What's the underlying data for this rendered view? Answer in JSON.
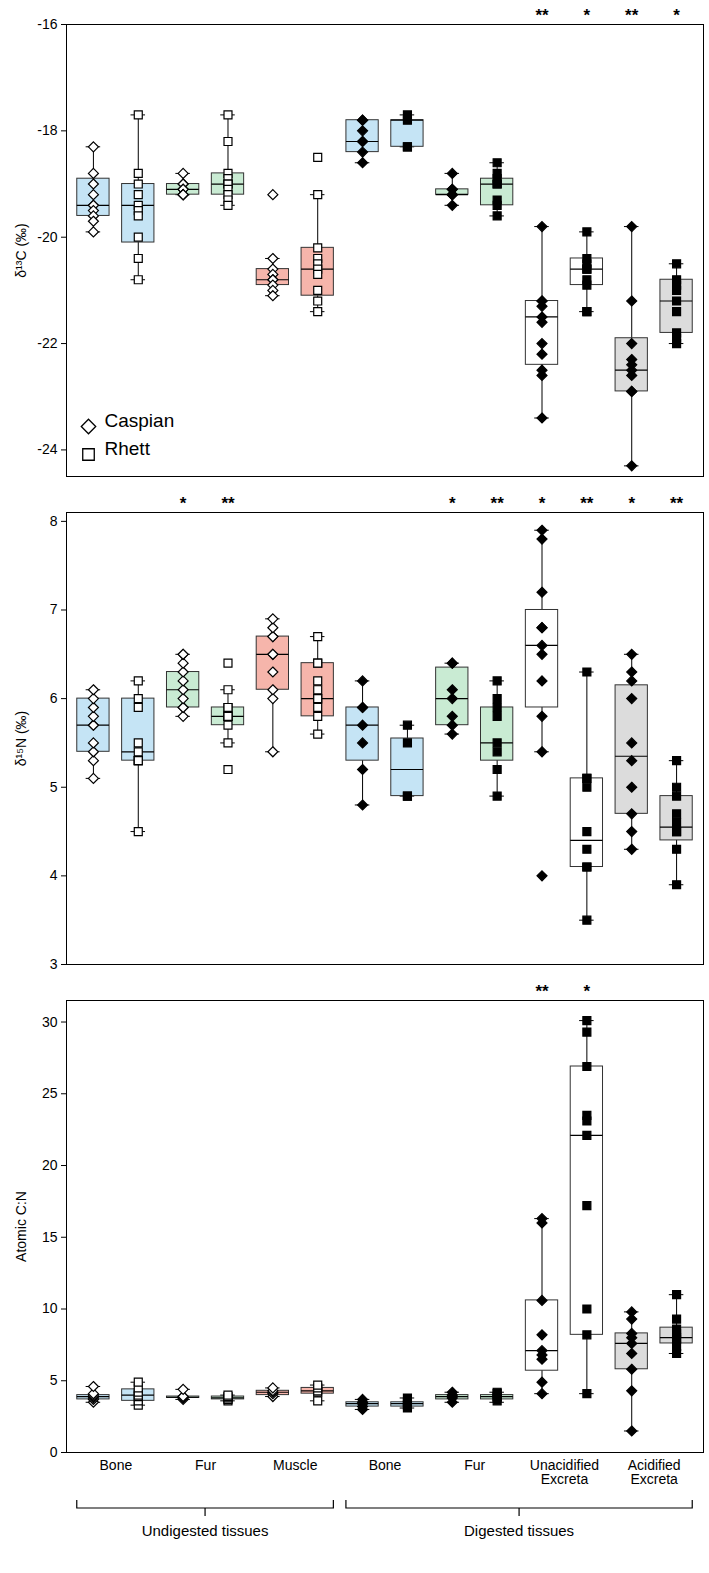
{
  "chart_data": [
    {
      "type": "box",
      "y_label": "δ¹³C (‰)",
      "tick_labels": "y",
      "legend": "bottom-left",
      "categories": [
        "Bone",
        "Fur",
        "Muscle",
        "Bone",
        "Fur",
        "Unacidified Excreta",
        "Acidified Excreta"
      ],
      "colors": [
        "#c5e4f5",
        "#c9ebd3",
        "#f6b5ab",
        "#c5e4f5",
        "#c9ebd3",
        "#ffffff",
        "#dcdcdc"
      ],
      "ylim": [
        -24.5,
        -16
      ],
      "yticks": [
        -24,
        -22,
        -20,
        -18,
        -16
      ],
      "series": [
        {
          "name": "Caspian",
          "marker": "diamond",
          "significance": [
            null,
            null,
            null,
            null,
            null,
            "**",
            "**"
          ],
          "boxes": [
            {
              "min": -19.9,
              "q1": -19.6,
              "median": -19.4,
              "q3": -18.9,
              "max": -18.3,
              "points": [
                -18.3,
                -18.8,
                -19.0,
                -19.2,
                -19.4,
                -19.4,
                -19.5,
                -19.6,
                -19.7,
                -19.9
              ]
            },
            {
              "min": -19.2,
              "q1": -19.2,
              "median": -19.1,
              "q3": -19.0,
              "max": -18.8,
              "points": [
                -18.8,
                -19.0,
                -19.0,
                -19.1,
                -19.1,
                -19.1,
                -19.2,
                -19.2,
                -19.2,
                -19.2
              ]
            },
            {
              "min": -21.1,
              "q1": -20.9,
              "median": -20.8,
              "q3": -20.6,
              "max": -20.4,
              "points": [
                -19.2,
                -20.4,
                -20.6,
                -20.7,
                -20.8,
                -20.8,
                -20.9,
                -21.0,
                -21.1
              ]
            },
            {
              "min": -18.6,
              "q1": -18.4,
              "median": -18.2,
              "q3": -17.8,
              "max": -17.8,
              "points": [
                -17.8,
                -17.8,
                -18.0,
                -18.2,
                -18.2,
                -18.4,
                -18.6
              ]
            },
            {
              "min": -19.4,
              "q1": -19.2,
              "median": -19.2,
              "q3": -19.1,
              "max": -18.8,
              "points": [
                -18.8,
                -19.1,
                -19.1,
                -19.2,
                -19.2,
                -19.2,
                -19.4
              ]
            },
            {
              "min": -23.4,
              "q1": -22.4,
              "median": -21.5,
              "q3": -21.2,
              "max": -19.8,
              "points": [
                -19.8,
                -21.2,
                -21.2,
                -21.3,
                -21.5,
                -21.6,
                -22.0,
                -22.2,
                -22.5,
                -22.6,
                -23.4
              ]
            },
            {
              "min": -24.3,
              "q1": -22.9,
              "median": -22.5,
              "q3": -21.9,
              "max": -19.8,
              "points": [
                -19.8,
                -21.2,
                -22.0,
                -22.3,
                -22.4,
                -22.5,
                -22.6,
                -22.9,
                -22.9,
                -24.3
              ]
            }
          ]
        },
        {
          "name": "Rhett",
          "marker": "square",
          "significance": [
            null,
            null,
            null,
            null,
            null,
            "*",
            "*"
          ],
          "boxes": [
            {
              "min": -20.8,
              "q1": -20.1,
              "median": -19.4,
              "q3": -19.0,
              "max": -17.7,
              "points": [
                -17.7,
                -18.8,
                -19.0,
                -19.2,
                -19.4,
                -19.5,
                -19.6,
                -20.0,
                -20.4,
                -20.8
              ]
            },
            {
              "min": -19.4,
              "q1": -19.2,
              "median": -19.0,
              "q3": -18.8,
              "max": -17.7,
              "points": [
                -17.7,
                -18.2,
                -18.8,
                -18.9,
                -19.0,
                -19.0,
                -19.1,
                -19.2,
                -19.3,
                -19.4
              ]
            },
            {
              "min": -21.4,
              "q1": -21.1,
              "median": -20.6,
              "q3": -20.2,
              "max": -19.2,
              "points": [
                -18.5,
                -19.2,
                -20.2,
                -20.4,
                -20.5,
                -20.6,
                -20.7,
                -21.0,
                -21.2,
                -21.4
              ]
            },
            {
              "min": -18.3,
              "q1": -18.3,
              "median": -17.8,
              "q3": -17.8,
              "max": -17.7,
              "points": [
                -17.7,
                -17.8,
                -18.3,
                -18.3
              ]
            },
            {
              "min": -19.6,
              "q1": -19.4,
              "median": -19.0,
              "q3": -18.9,
              "max": -18.6,
              "points": [
                -18.6,
                -18.8,
                -18.9,
                -19.0,
                -19.0,
                -19.3,
                -19.4,
                -19.6
              ]
            },
            {
              "min": -21.4,
              "q1": -20.9,
              "median": -20.6,
              "q3": -20.4,
              "max": -19.9,
              "points": [
                -19.9,
                -20.4,
                -20.5,
                -20.6,
                -20.6,
                -20.8,
                -20.9,
                -21.4,
                -21.4
              ]
            },
            {
              "min": -22.0,
              "q1": -21.8,
              "median": -21.2,
              "q3": -20.8,
              "max": -20.5,
              "points": [
                -20.5,
                -20.8,
                -20.9,
                -21.0,
                -21.2,
                -21.4,
                -21.8,
                -21.9,
                -22.0
              ]
            }
          ]
        }
      ]
    },
    {
      "type": "box",
      "y_label": "δ¹⁵N (‰)",
      "tick_labels": "y",
      "categories": [
        "Bone",
        "Fur",
        "Muscle",
        "Bone",
        "Fur",
        "Unacidified Excreta",
        "Acidified Excreta"
      ],
      "colors": [
        "#c5e4f5",
        "#c9ebd3",
        "#f6b5ab",
        "#c5e4f5",
        "#c9ebd3",
        "#ffffff",
        "#dcdcdc"
      ],
      "ylim": [
        3,
        8.1
      ],
      "yticks": [
        3,
        4,
        5,
        6,
        7,
        8
      ],
      "series": [
        {
          "name": "Caspian",
          "marker": "diamond",
          "significance": [
            null,
            "*",
            null,
            null,
            "*",
            "*",
            "*"
          ],
          "boxes": [
            {
              "min": 5.1,
              "q1": 5.4,
              "median": 5.7,
              "q3": 6.0,
              "max": 6.1,
              "points": [
                5.1,
                5.3,
                5.4,
                5.5,
                5.7,
                5.7,
                5.8,
                5.9,
                6.0,
                6.1
              ]
            },
            {
              "min": 5.8,
              "q1": 5.9,
              "median": 6.1,
              "q3": 6.3,
              "max": 6.5,
              "points": [
                5.8,
                5.9,
                5.9,
                6.0,
                6.1,
                6.2,
                6.3,
                6.4,
                6.5,
                6.5
              ]
            },
            {
              "min": 5.4,
              "q1": 6.1,
              "median": 6.5,
              "q3": 6.7,
              "max": 6.9,
              "points": [
                5.4,
                6.0,
                6.1,
                6.3,
                6.5,
                6.5,
                6.7,
                6.7,
                6.8,
                6.9
              ]
            },
            {
              "min": 4.8,
              "q1": 5.3,
              "median": 5.7,
              "q3": 5.9,
              "max": 6.2,
              "points": [
                4.8,
                5.2,
                5.5,
                5.7,
                5.9,
                5.9,
                6.2
              ]
            },
            {
              "min": 5.6,
              "q1": 5.7,
              "median": 6.0,
              "q3": 6.35,
              "max": 6.4,
              "points": [
                5.6,
                5.7,
                5.8,
                6.0,
                6.1,
                6.4,
                6.4
              ]
            },
            {
              "min": 5.4,
              "q1": 5.9,
              "median": 6.6,
              "q3": 7.0,
              "max": 7.9,
              "points": [
                4.0,
                5.4,
                5.8,
                6.2,
                6.5,
                6.6,
                6.8,
                6.8,
                7.2,
                7.8,
                7.9
              ]
            },
            {
              "min": 4.3,
              "q1": 4.7,
              "median": 5.35,
              "q3": 6.15,
              "max": 6.5,
              "points": [
                4.3,
                4.5,
                4.7,
                5.0,
                5.3,
                5.5,
                6.0,
                6.2,
                6.3,
                6.5
              ]
            }
          ]
        },
        {
          "name": "Rhett",
          "marker": "square",
          "significance": [
            null,
            "**",
            null,
            null,
            "**",
            "**",
            "**"
          ],
          "boxes": [
            {
              "min": 4.5,
              "q1": 5.3,
              "median": 5.4,
              "q3": 6.0,
              "max": 6.2,
              "points": [
                4.5,
                5.3,
                5.3,
                5.3,
                5.4,
                5.5,
                5.9,
                6.0,
                6.2
              ]
            },
            {
              "min": 5.5,
              "q1": 5.7,
              "median": 5.8,
              "q3": 5.9,
              "max": 6.1,
              "points": [
                5.2,
                5.5,
                5.7,
                5.8,
                5.8,
                5.8,
                5.9,
                5.9,
                6.1,
                6.4
              ]
            },
            {
              "min": 5.6,
              "q1": 5.8,
              "median": 6.0,
              "q3": 6.4,
              "max": 6.7,
              "points": [
                5.6,
                5.8,
                5.9,
                6.0,
                6.0,
                6.1,
                6.2,
                6.4,
                6.4,
                6.7
              ]
            },
            {
              "min": 4.9,
              "q1": 4.9,
              "median": 5.2,
              "q3": 5.55,
              "max": 5.7,
              "points": [
                4.9,
                4.9,
                5.5,
                5.7
              ]
            },
            {
              "min": 4.9,
              "q1": 5.3,
              "median": 5.5,
              "q3": 5.9,
              "max": 6.2,
              "points": [
                4.9,
                5.2,
                5.4,
                5.5,
                5.8,
                5.9,
                6.0,
                6.2
              ]
            },
            {
              "min": 3.5,
              "q1": 4.1,
              "median": 4.4,
              "q3": 5.1,
              "max": 6.3,
              "points": [
                3.5,
                4.1,
                4.1,
                4.3,
                4.5,
                5.0,
                5.1,
                5.1,
                6.3
              ]
            },
            {
              "min": 3.9,
              "q1": 4.4,
              "median": 4.55,
              "q3": 4.9,
              "max": 5.3,
              "points": [
                3.9,
                4.3,
                4.5,
                4.5,
                4.6,
                4.7,
                4.9,
                5.0,
                5.3
              ]
            }
          ]
        }
      ]
    },
    {
      "type": "box",
      "y_label": "Atomic C:N",
      "categories": [
        "Bone",
        "Fur",
        "Muscle",
        "Bone",
        "Fur",
        "Unacidified Excreta",
        "Acidified Excreta"
      ],
      "colors": [
        "#c5e4f5",
        "#c9ebd3",
        "#f6b5ab",
        "#c5e4f5",
        "#c9ebd3",
        "#ffffff",
        "#dcdcdc"
      ],
      "ylim": [
        0,
        31.5
      ],
      "yticks": [
        0,
        5,
        10,
        15,
        20,
        25,
        30
      ],
      "groups": [
        {
          "label": "Undigested tissues",
          "span": 3
        },
        {
          "label": "Digested tissues",
          "span": 4
        }
      ],
      "series": [
        {
          "name": "Caspian",
          "marker": "diamond",
          "significance": [
            null,
            null,
            null,
            null,
            null,
            "**",
            null
          ],
          "boxes": [
            {
              "min": 3.5,
              "q1": 3.7,
              "median": 3.9,
              "q3": 4.0,
              "max": 4.6,
              "points": [
                3.5,
                3.7,
                3.8,
                3.9,
                3.9,
                4.0,
                4.1,
                4.6
              ]
            },
            {
              "min": 3.7,
              "q1": 3.8,
              "median": 3.85,
              "q3": 3.9,
              "max": 4.4,
              "points": [
                3.7,
                3.8,
                3.8,
                3.9,
                3.9,
                4.4
              ]
            },
            {
              "min": 3.9,
              "q1": 4.0,
              "median": 4.2,
              "q3": 4.3,
              "max": 4.5,
              "points": [
                3.9,
                4.1,
                4.2,
                4.3,
                4.5
              ]
            },
            {
              "min": 3.0,
              "q1": 3.2,
              "median": 3.4,
              "q3": 3.5,
              "max": 3.7,
              "points": [
                3.0,
                3.2,
                3.4,
                3.5,
                3.7
              ]
            },
            {
              "min": 3.5,
              "q1": 3.7,
              "median": 3.9,
              "q3": 4.0,
              "max": 4.2,
              "points": [
                3.5,
                3.8,
                3.9,
                4.0,
                4.2
              ]
            },
            {
              "min": 4.1,
              "q1": 5.7,
              "median": 7.1,
              "q3": 10.6,
              "max": 16.3,
              "points": [
                4.1,
                4.9,
                6.5,
                6.8,
                7.1,
                8.2,
                10.6,
                16.0,
                16.3
              ]
            },
            {
              "min": 1.5,
              "q1": 5.8,
              "median": 7.6,
              "q3": 8.3,
              "max": 9.8,
              "points": [
                1.5,
                4.3,
                5.8,
                6.9,
                7.6,
                8.0,
                8.3,
                9.3,
                9.8
              ]
            }
          ]
        },
        {
          "name": "Rhett",
          "marker": "square",
          "significance": [
            null,
            null,
            null,
            null,
            null,
            "*",
            null
          ],
          "boxes": [
            {
              "min": 3.3,
              "q1": 3.6,
              "median": 4.0,
              "q3": 4.4,
              "max": 4.9,
              "points": [
                3.3,
                3.6,
                3.9,
                4.0,
                4.2,
                4.5,
                4.9
              ]
            },
            {
              "min": 3.6,
              "q1": 3.7,
              "median": 3.8,
              "q3": 3.9,
              "max": 4.0,
              "points": [
                3.6,
                3.7,
                3.8,
                3.9,
                4.0
              ]
            },
            {
              "min": 3.6,
              "q1": 4.1,
              "median": 4.3,
              "q3": 4.5,
              "max": 4.7,
              "points": [
                3.6,
                4.2,
                4.3,
                4.5,
                4.7
              ]
            },
            {
              "min": 3.1,
              "q1": 3.2,
              "median": 3.4,
              "q3": 3.5,
              "max": 3.8,
              "points": [
                3.1,
                3.3,
                3.5,
                3.8
              ]
            },
            {
              "min": 3.5,
              "q1": 3.7,
              "median": 3.9,
              "q3": 4.0,
              "max": 4.2,
              "points": [
                3.6,
                3.8,
                3.9,
                4.1,
                4.2
              ]
            },
            {
              "min": 4.1,
              "q1": 8.2,
              "median": 22.1,
              "q3": 26.9,
              "max": 30.1,
              "points": [
                4.1,
                8.2,
                10.0,
                17.2,
                22.1,
                23.1,
                23.5,
                26.9,
                29.3,
                30.1
              ]
            },
            {
              "min": 6.9,
              "q1": 7.6,
              "median": 8.0,
              "q3": 8.7,
              "max": 11.0,
              "points": [
                6.9,
                7.4,
                7.9,
                8.0,
                8.3,
                8.6,
                9.3,
                11.0
              ]
            }
          ]
        }
      ]
    }
  ]
}
